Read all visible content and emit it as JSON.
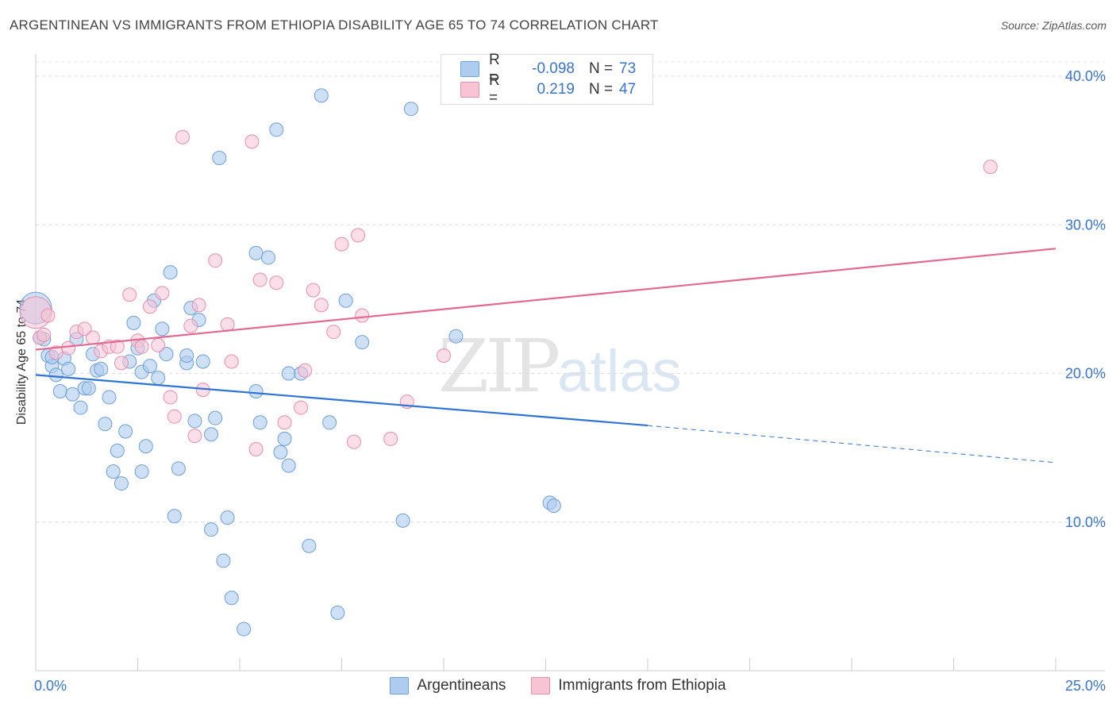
{
  "header": {
    "title": "ARGENTINEAN VS IMMIGRANTS FROM ETHIOPIA DISABILITY AGE 65 TO 74 CORRELATION CHART",
    "source": "Source: ZipAtlas.com"
  },
  "watermark": {
    "zip": "ZIP",
    "atlas": "atlas"
  },
  "legend": {
    "rows": [
      {
        "r_label": "R =",
        "r_value": "-0.098",
        "n_label": "N =",
        "n_value": "73",
        "color": "#aecbf0",
        "stroke": "#6f9fd8"
      },
      {
        "r_label": "R =",
        "r_value": "0.219",
        "n_label": "N =",
        "n_value": "47",
        "color": "#f8c3d3",
        "stroke": "#e58fab"
      }
    ]
  },
  "bottom_legend": {
    "items": [
      {
        "label": "Argentineans",
        "color": "#aecbf0",
        "stroke": "#6f9fd8"
      },
      {
        "label": "Immigrants from Ethiopia",
        "color": "#f8c3d3",
        "stroke": "#e58fab"
      }
    ]
  },
  "chart_data": {
    "type": "scatter",
    "title": "ARGENTINEAN VS IMMIGRANTS FROM ETHIOPIA DISABILITY AGE 65 TO 74 CORRELATION CHART",
    "xlabel": "",
    "ylabel": "Disability Age 65 to 74",
    "xlim": [
      0,
      25
    ],
    "ylim": [
      0,
      40
    ],
    "x_tick_labels": [
      "0.0%",
      "25.0%"
    ],
    "y_tick_values": [
      10,
      20,
      30,
      40
    ],
    "y_tick_labels": [
      "10.0%",
      "20.0%",
      "30.0%",
      "40.0%"
    ],
    "grid": true,
    "legend_position": "top-center",
    "series": [
      {
        "name": "Argentineans",
        "color": "#6f9fd8",
        "fill": "#aecbf0",
        "trend": {
          "x": [
            0,
            15,
            25
          ],
          "y": [
            19.9,
            16.5,
            14.0
          ],
          "solid_until": 15,
          "color": "#2f74d0"
        },
        "points": [
          [
            0.0,
            24.4
          ],
          [
            0.2,
            22.3
          ],
          [
            0.3,
            21.2
          ],
          [
            0.4,
            20.5
          ],
          [
            0.5,
            19.9
          ],
          [
            0.6,
            18.8
          ],
          [
            0.7,
            21.0
          ],
          [
            0.8,
            20.3
          ],
          [
            0.9,
            18.6
          ],
          [
            1.0,
            22.3
          ],
          [
            1.1,
            17.7
          ],
          [
            1.2,
            19.0
          ],
          [
            1.3,
            19.0
          ],
          [
            1.4,
            21.3
          ],
          [
            1.5,
            20.2
          ],
          [
            1.6,
            20.3
          ],
          [
            1.7,
            16.6
          ],
          [
            1.8,
            18.4
          ],
          [
            1.9,
            13.4
          ],
          [
            2.0,
            14.8
          ],
          [
            2.1,
            12.6
          ],
          [
            2.2,
            16.1
          ],
          [
            2.3,
            20.8
          ],
          [
            2.4,
            23.4
          ],
          [
            2.5,
            21.7
          ],
          [
            2.6,
            20.1
          ],
          [
            2.6,
            13.4
          ],
          [
            2.7,
            15.1
          ],
          [
            2.8,
            20.5
          ],
          [
            2.9,
            24.9
          ],
          [
            3.0,
            19.7
          ],
          [
            3.1,
            23.0
          ],
          [
            3.2,
            21.3
          ],
          [
            3.3,
            26.8
          ],
          [
            3.4,
            10.4
          ],
          [
            3.5,
            13.6
          ],
          [
            3.7,
            20.7
          ],
          [
            3.7,
            21.2
          ],
          [
            3.8,
            24.4
          ],
          [
            3.9,
            16.8
          ],
          [
            4.0,
            23.6
          ],
          [
            4.1,
            20.8
          ],
          [
            4.3,
            9.5
          ],
          [
            4.3,
            15.9
          ],
          [
            4.4,
            17.0
          ],
          [
            4.5,
            34.5
          ],
          [
            4.6,
            7.4
          ],
          [
            4.7,
            10.3
          ],
          [
            4.8,
            4.9
          ],
          [
            5.1,
            2.8
          ],
          [
            5.4,
            18.8
          ],
          [
            5.4,
            28.1
          ],
          [
            5.5,
            16.7
          ],
          [
            5.7,
            27.8
          ],
          [
            5.9,
            36.4
          ],
          [
            6.0,
            14.7
          ],
          [
            6.1,
            15.6
          ],
          [
            6.2,
            13.8
          ],
          [
            6.2,
            20.0
          ],
          [
            6.5,
            20.0
          ],
          [
            6.7,
            8.4
          ],
          [
            7.0,
            38.7
          ],
          [
            7.2,
            16.7
          ],
          [
            7.4,
            3.9
          ],
          [
            7.6,
            24.9
          ],
          [
            8.0,
            22.1
          ],
          [
            9.0,
            10.1
          ],
          [
            9.2,
            37.8
          ],
          [
            10.3,
            22.5
          ],
          [
            12.6,
            11.3
          ],
          [
            12.7,
            11.1
          ],
          [
            0.1,
            22.4
          ],
          [
            0.4,
            21.1
          ]
        ]
      },
      {
        "name": "Immigrants from Ethiopia",
        "color": "#e58fab",
        "fill": "#f8c3d3",
        "trend": {
          "x": [
            0,
            25
          ],
          "y": [
            21.6,
            28.4
          ],
          "color": "#e06a93"
        },
        "points": [
          [
            0.0,
            24.1
          ],
          [
            0.1,
            22.4
          ],
          [
            0.3,
            23.9
          ],
          [
            0.5,
            21.4
          ],
          [
            0.8,
            21.7
          ],
          [
            1.0,
            22.8
          ],
          [
            1.2,
            23.0
          ],
          [
            1.4,
            22.4
          ],
          [
            1.6,
            21.5
          ],
          [
            1.8,
            21.8
          ],
          [
            2.0,
            21.8
          ],
          [
            2.1,
            20.7
          ],
          [
            2.3,
            25.3
          ],
          [
            2.5,
            22.2
          ],
          [
            2.6,
            21.8
          ],
          [
            2.8,
            24.5
          ],
          [
            3.0,
            21.9
          ],
          [
            3.1,
            25.4
          ],
          [
            3.3,
            18.4
          ],
          [
            3.4,
            17.1
          ],
          [
            3.6,
            35.9
          ],
          [
            3.8,
            23.2
          ],
          [
            3.9,
            15.8
          ],
          [
            4.0,
            24.6
          ],
          [
            4.1,
            18.9
          ],
          [
            4.4,
            27.6
          ],
          [
            4.7,
            23.3
          ],
          [
            4.8,
            20.8
          ],
          [
            5.3,
            35.6
          ],
          [
            5.4,
            14.9
          ],
          [
            5.5,
            26.3
          ],
          [
            5.9,
            26.1
          ],
          [
            6.1,
            16.7
          ],
          [
            6.5,
            17.7
          ],
          [
            6.6,
            20.2
          ],
          [
            6.8,
            25.6
          ],
          [
            7.0,
            24.6
          ],
          [
            7.3,
            22.8
          ],
          [
            7.5,
            28.7
          ],
          [
            7.8,
            15.4
          ],
          [
            7.9,
            29.3
          ],
          [
            8.0,
            23.9
          ],
          [
            8.7,
            15.6
          ],
          [
            9.1,
            18.1
          ],
          [
            10.0,
            21.2
          ],
          [
            23.4,
            33.9
          ],
          [
            0.2,
            22.6
          ]
        ]
      }
    ]
  }
}
